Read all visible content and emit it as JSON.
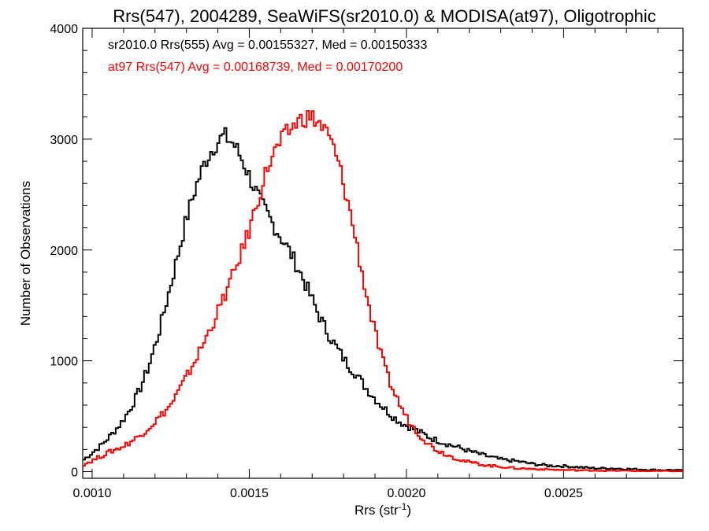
{
  "chart_data": {
    "type": "histogram",
    "title": "Rrs(547), 2004289, SeaWiFS(sr2010.0) & MODISA(at97), Oligotrophic",
    "xlabel": "Rrs (str",
    "xlabel_sup": "-1",
    "xlabel_close": ")",
    "ylabel": "Number of Observations",
    "xlim": [
      0.00097,
      0.00288
    ],
    "ylim": [
      -60,
      4000
    ],
    "x_ticks": [
      0.001,
      0.0015,
      0.002,
      0.0025
    ],
    "x_tick_labels": [
      "0.0010",
      "0.0015",
      "0.0020",
      "0.0025"
    ],
    "y_ticks": [
      0,
      1000,
      2000,
      3000,
      4000
    ],
    "y_tick_labels": [
      "0",
      "1000",
      "2000",
      "3000",
      "4000"
    ],
    "grid": false,
    "annotations": [
      {
        "text": "sr2010.0 Rrs(555) Avg = 0.00155327, Med = 0.00150333",
        "color": "#000000"
      },
      {
        "text": "at97 Rrs(547) Avg = 0.00168739, Med = 0.00170200",
        "color": "#ff0000"
      }
    ],
    "series": [
      {
        "color": "#000000",
        "x": [
          0.00097,
          0.001,
          0.00103,
          0.00106,
          0.00109,
          0.00112,
          0.00115,
          0.00118,
          0.00121,
          0.00124,
          0.00127,
          0.0013,
          0.00133,
          0.00136,
          0.00139,
          0.00142,
          0.00145,
          0.00148,
          0.00151,
          0.00154,
          0.00157,
          0.0016,
          0.00163,
          0.00166,
          0.00169,
          0.00172,
          0.00175,
          0.00178,
          0.00181,
          0.00184,
          0.00187,
          0.0019,
          0.00193,
          0.00196,
          0.00199,
          0.00202,
          0.00205,
          0.00208,
          0.00211,
          0.00214,
          0.00217,
          0.0022,
          0.00225,
          0.0023,
          0.00235,
          0.0024,
          0.00245,
          0.0025,
          0.00255,
          0.0026,
          0.00265,
          0.0027,
          0.00275,
          0.0028,
          0.00285,
          0.00288
        ],
        "y": [
          100,
          170,
          240,
          330,
          430,
          560,
          730,
          950,
          1230,
          1570,
          1920,
          2280,
          2570,
          2800,
          2950,
          3030,
          2960,
          2800,
          2600,
          2410,
          2260,
          2120,
          1980,
          1810,
          1620,
          1420,
          1250,
          1110,
          980,
          880,
          760,
          660,
          570,
          490,
          430,
          390,
          345,
          300,
          270,
          240,
          215,
          185,
          145,
          110,
          95,
          70,
          55,
          50,
          40,
          30,
          30,
          25,
          20,
          15,
          15,
          10
        ]
      },
      {
        "color": "#ff0000",
        "x": [
          0.00097,
          0.001,
          0.00105,
          0.0011,
          0.00115,
          0.0012,
          0.00125,
          0.0013,
          0.00135,
          0.0014,
          0.00145,
          0.0015,
          0.00153,
          0.00156,
          0.00159,
          0.00162,
          0.00165,
          0.00168,
          0.0017,
          0.00172,
          0.00174,
          0.00176,
          0.00178,
          0.0018,
          0.00182,
          0.00184,
          0.00186,
          0.00188,
          0.0019,
          0.00192,
          0.00194,
          0.00196,
          0.00198,
          0.002,
          0.00202,
          0.00204,
          0.00206,
          0.00208,
          0.0021,
          0.00212,
          0.00214,
          0.00216,
          0.00218,
          0.0022,
          0.00223,
          0.00226,
          0.0023,
          0.00235,
          0.0024,
          0.00245,
          0.0025,
          0.00255,
          0.0026,
          0.00265,
          0.0027,
          0.00275,
          0.0028,
          0.00285,
          0.00288
        ],
        "y": [
          60,
          100,
          170,
          230,
          320,
          450,
          600,
          850,
          1130,
          1440,
          1780,
          2180,
          2480,
          2760,
          2930,
          3050,
          3150,
          3200,
          3190,
          3150,
          3080,
          2980,
          2820,
          2600,
          2350,
          2080,
          1780,
          1500,
          1260,
          1040,
          860,
          720,
          600,
          490,
          410,
          340,
          280,
          230,
          190,
          165,
          140,
          120,
          100,
          85,
          70,
          55,
          45,
          30,
          25,
          20,
          15,
          12,
          10,
          8,
          8,
          5,
          5,
          5,
          5
        ]
      }
    ]
  }
}
